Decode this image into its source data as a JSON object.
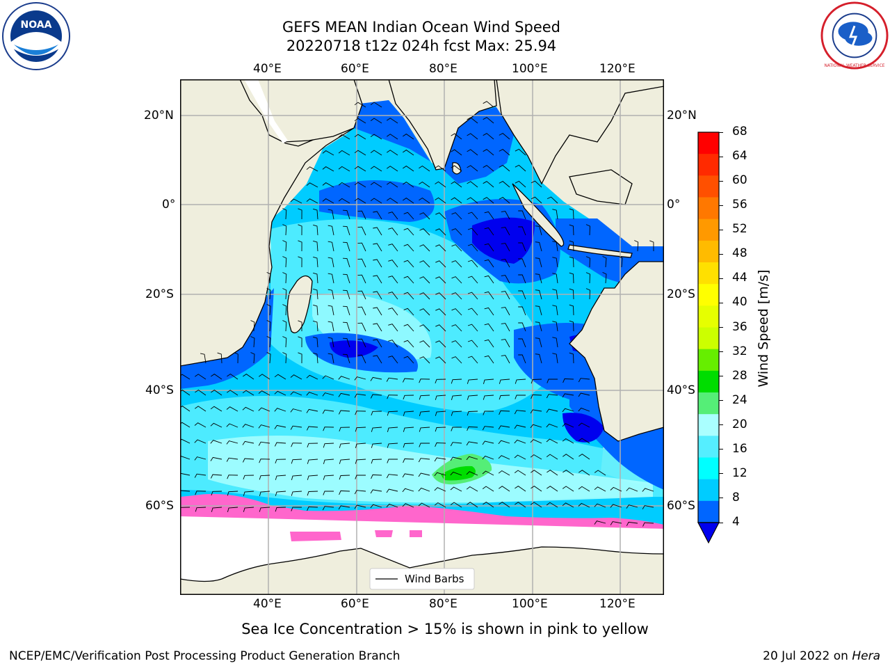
{
  "title": {
    "line1": "GEFS MEAN Indian Ocean Wind Speed",
    "line2": "20220718 t12z 024h fcst   Max: 25.94"
  },
  "logos": {
    "noaa_text": "NOAA",
    "nws_text": "NATIONAL WEATHER SERVICE"
  },
  "map": {
    "lon_ticks": [
      "40°E",
      "60°E",
      "80°E",
      "100°E",
      "120°E"
    ],
    "lat_ticks": [
      "20°N",
      "0°",
      "20°S",
      "40°S",
      "60°S"
    ],
    "legend_label": "Wind Barbs",
    "max_wind_speed": 25.94,
    "lon_range": [
      20,
      130
    ],
    "lat_range": [
      -72,
      28
    ]
  },
  "colorbar": {
    "label": "Wind Speed [m/s]",
    "ticks": [
      "68",
      "64",
      "60",
      "56",
      "52",
      "48",
      "44",
      "40",
      "36",
      "32",
      "28",
      "24",
      "20",
      "16",
      "12",
      "8",
      "4"
    ],
    "colors_top_to_bottom": [
      "#ff0000",
      "#ff2a00",
      "#ff5000",
      "#ff7800",
      "#ff9900",
      "#ffbb00",
      "#ffe000",
      "#ffff00",
      "#e6ff00",
      "#ccff00",
      "#66ee00",
      "#00dd00",
      "#55ee77",
      "#aaffff",
      "#55eeff",
      "#00ffff",
      "#00ccff",
      "#0066ff"
    ],
    "under_color": "#0000ee"
  },
  "notes": {
    "sea_ice": "Sea Ice Concentration > 15% is shown in pink to yellow"
  },
  "footer": {
    "left": "NCEP/EMC/Verification Post Processing Product Generation Branch",
    "date": "20 Jul 2022 on ",
    "machine": "Hera"
  }
}
